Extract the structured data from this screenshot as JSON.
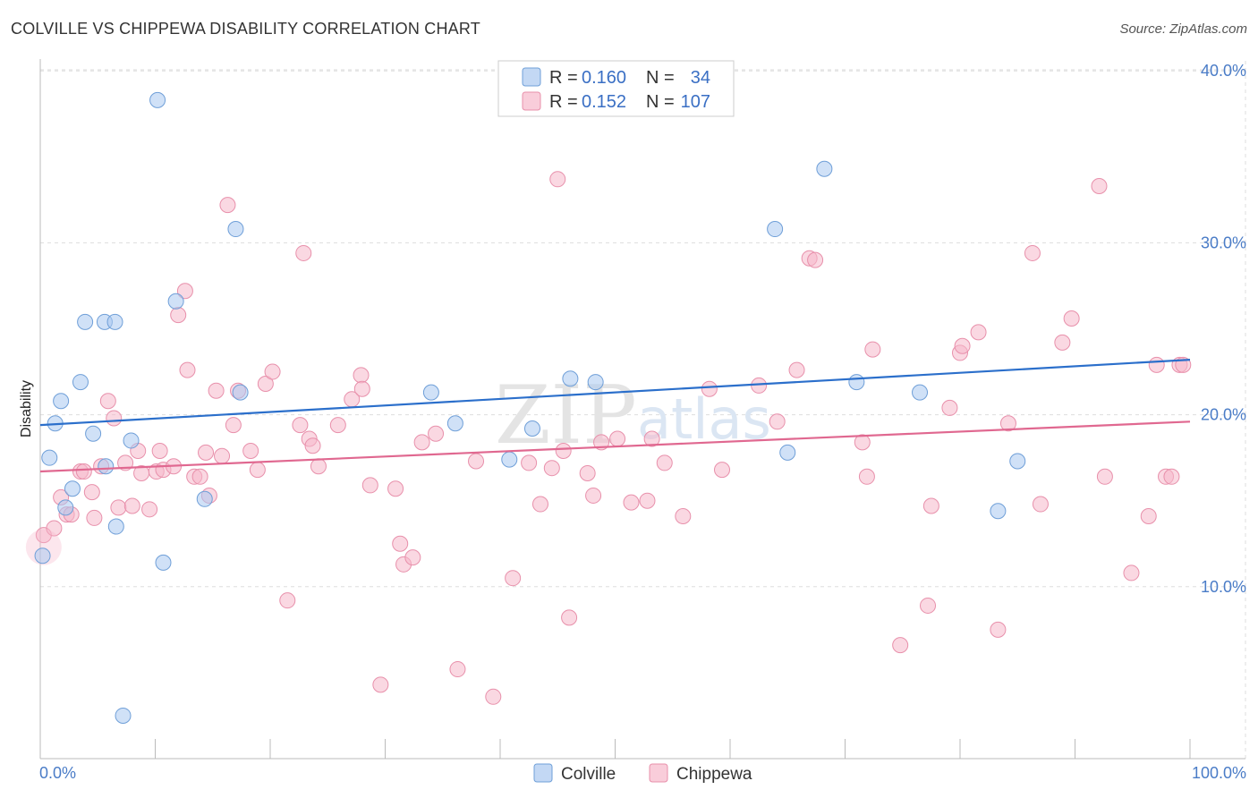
{
  "header": {
    "title": "COLVILLE VS CHIPPEWA DISABILITY CORRELATION CHART",
    "source": "Source: ZipAtlas.com"
  },
  "watermark": {
    "part1": "ZIP",
    "part2": "atlas"
  },
  "legend": {
    "rows": [
      {
        "r_label": "R = ",
        "r_value": "0.160",
        "n_label": "N = ",
        "n_value": "34",
        "color": "#a9c8f0"
      },
      {
        "r_label": "R = ",
        "r_value": "0.152",
        "n_label": "N = ",
        "n_value": "107",
        "color": "#f6b8cb"
      }
    ]
  },
  "colors": {
    "colville_fill": "#a9c8f0",
    "colville_stroke": "#6f9fd8",
    "colville_line": "#2b6fcb",
    "chippewa_fill": "#f6b8cb",
    "chippewa_stroke": "#e890ab",
    "chippewa_line": "#e06890",
    "grid": "#dddddd",
    "axis": "#bbbbbb"
  },
  "chart_data": {
    "type": "scatter",
    "title": "COLVILLE VS CHIPPEWA DISABILITY CORRELATION CHART",
    "xlabel": "",
    "ylabel": "Disability",
    "xlim": [
      0,
      100
    ],
    "ylim": [
      0,
      41
    ],
    "y_ticks": [
      10,
      20,
      30,
      40
    ],
    "y_tick_labels": [
      "10.0%",
      "20.0%",
      "30.0%",
      "40.0%"
    ],
    "x_tick_labels": {
      "left": "0.0%",
      "right": "100.0%"
    },
    "grid": true,
    "legend_position": "top-center",
    "series": [
      {
        "name": "Colville",
        "r": 0.16,
        "n": 34,
        "trend": [
          [
            0,
            19.4
          ],
          [
            100,
            23.2
          ]
        ],
        "points": [
          [
            0.2,
            11.8
          ],
          [
            0.8,
            17.5
          ],
          [
            1.3,
            19.5
          ],
          [
            1.8,
            20.8
          ],
          [
            2.2,
            14.6
          ],
          [
            2.8,
            15.7
          ],
          [
            3.5,
            21.9
          ],
          [
            3.9,
            25.4
          ],
          [
            4.6,
            18.9
          ],
          [
            5.6,
            25.4
          ],
          [
            5.7,
            17.0
          ],
          [
            6.5,
            25.4
          ],
          [
            6.6,
            13.5
          ],
          [
            7.2,
            2.5
          ],
          [
            7.9,
            18.5
          ],
          [
            10.2,
            38.3
          ],
          [
            10.7,
            11.4
          ],
          [
            11.8,
            26.6
          ],
          [
            14.3,
            15.1
          ],
          [
            17.0,
            30.8
          ],
          [
            17.4,
            21.3
          ],
          [
            34.0,
            21.3
          ],
          [
            36.1,
            19.5
          ],
          [
            40.8,
            17.4
          ],
          [
            42.8,
            19.2
          ],
          [
            46.1,
            22.1
          ],
          [
            48.3,
            21.9
          ],
          [
            63.9,
            30.8
          ],
          [
            65.0,
            17.8
          ],
          [
            68.2,
            34.3
          ],
          [
            71.0,
            21.9
          ],
          [
            76.5,
            21.3
          ],
          [
            83.3,
            14.4
          ],
          [
            85.0,
            17.3
          ]
        ]
      },
      {
        "name": "Chippewa",
        "r": 0.152,
        "n": 107,
        "trend": [
          [
            0,
            16.7
          ],
          [
            100,
            19.6
          ]
        ],
        "points": [
          [
            0.3,
            13.0
          ],
          [
            1.2,
            13.4
          ],
          [
            1.8,
            15.2
          ],
          [
            2.3,
            14.2
          ],
          [
            2.7,
            14.2
          ],
          [
            3.5,
            16.7
          ],
          [
            3.8,
            16.7
          ],
          [
            4.5,
            15.5
          ],
          [
            4.7,
            14.0
          ],
          [
            5.3,
            17.0
          ],
          [
            5.9,
            20.8
          ],
          [
            6.4,
            19.8
          ],
          [
            6.8,
            14.6
          ],
          [
            7.4,
            17.2
          ],
          [
            8.0,
            14.7
          ],
          [
            8.5,
            17.9
          ],
          [
            8.8,
            16.6
          ],
          [
            9.5,
            14.5
          ],
          [
            10.1,
            16.7
          ],
          [
            10.4,
            17.9
          ],
          [
            10.7,
            16.8
          ],
          [
            11.6,
            17.0
          ],
          [
            12.0,
            25.8
          ],
          [
            12.6,
            27.2
          ],
          [
            12.8,
            22.6
          ],
          [
            13.4,
            16.4
          ],
          [
            13.9,
            16.4
          ],
          [
            14.4,
            17.8
          ],
          [
            14.7,
            15.3
          ],
          [
            15.3,
            21.4
          ],
          [
            15.8,
            17.6
          ],
          [
            16.3,
            32.2
          ],
          [
            16.8,
            19.4
          ],
          [
            17.2,
            21.4
          ],
          [
            18.3,
            17.9
          ],
          [
            18.9,
            16.8
          ],
          [
            19.6,
            21.8
          ],
          [
            20.2,
            22.5
          ],
          [
            21.5,
            9.2
          ],
          [
            22.6,
            19.4
          ],
          [
            22.9,
            29.4
          ],
          [
            23.4,
            18.6
          ],
          [
            23.7,
            18.2
          ],
          [
            24.2,
            17.0
          ],
          [
            25.9,
            19.4
          ],
          [
            27.1,
            20.9
          ],
          [
            27.9,
            22.3
          ],
          [
            28.0,
            21.5
          ],
          [
            28.7,
            15.9
          ],
          [
            29.6,
            4.3
          ],
          [
            30.9,
            15.7
          ],
          [
            31.3,
            12.5
          ],
          [
            31.6,
            11.3
          ],
          [
            32.4,
            11.7
          ],
          [
            33.2,
            18.4
          ],
          [
            34.4,
            18.9
          ],
          [
            36.3,
            5.2
          ],
          [
            37.9,
            17.3
          ],
          [
            39.4,
            3.6
          ],
          [
            41.1,
            10.5
          ],
          [
            42.5,
            17.2
          ],
          [
            43.5,
            14.8
          ],
          [
            44.5,
            16.9
          ],
          [
            45.0,
            33.7
          ],
          [
            45.5,
            17.9
          ],
          [
            46.0,
            8.2
          ],
          [
            47.6,
            16.6
          ],
          [
            48.1,
            15.3
          ],
          [
            48.8,
            18.4
          ],
          [
            50.2,
            18.6
          ],
          [
            51.4,
            14.9
          ],
          [
            52.8,
            15.0
          ],
          [
            53.2,
            18.6
          ],
          [
            54.3,
            17.2
          ],
          [
            55.9,
            14.1
          ],
          [
            58.2,
            21.5
          ],
          [
            59.3,
            16.8
          ],
          [
            62.5,
            21.7
          ],
          [
            64.1,
            19.6
          ],
          [
            65.8,
            22.6
          ],
          [
            66.9,
            29.1
          ],
          [
            67.4,
            29.0
          ],
          [
            71.5,
            18.4
          ],
          [
            71.9,
            16.4
          ],
          [
            72.4,
            23.8
          ],
          [
            74.8,
            6.6
          ],
          [
            77.2,
            8.9
          ],
          [
            77.5,
            14.7
          ],
          [
            79.1,
            20.4
          ],
          [
            80.0,
            23.6
          ],
          [
            80.2,
            24.0
          ],
          [
            81.6,
            24.8
          ],
          [
            83.3,
            7.5
          ],
          [
            84.2,
            19.5
          ],
          [
            86.3,
            29.4
          ],
          [
            87.0,
            14.8
          ],
          [
            88.9,
            24.2
          ],
          [
            89.7,
            25.6
          ],
          [
            92.1,
            33.3
          ],
          [
            92.6,
            16.4
          ],
          [
            94.9,
            10.8
          ],
          [
            96.4,
            14.1
          ],
          [
            97.1,
            22.9
          ],
          [
            97.9,
            16.4
          ],
          [
            98.4,
            16.4
          ],
          [
            99.1,
            22.9
          ],
          [
            99.4,
            22.9
          ]
        ]
      }
    ]
  }
}
